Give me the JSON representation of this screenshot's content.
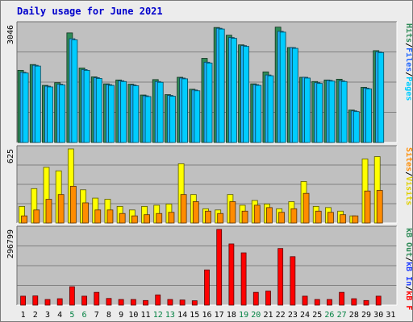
{
  "chart_data": {
    "type": "bar",
    "title": "Daily usage for June 2021",
    "categories": [
      "1",
      "2",
      "3",
      "4",
      "5",
      "6",
      "7",
      "8",
      "9",
      "10",
      "11",
      "12",
      "13",
      "14",
      "15",
      "16",
      "17",
      "18",
      "19",
      "20",
      "21",
      "22",
      "23",
      "24",
      "25",
      "26",
      "27",
      "28",
      "29",
      "30",
      "31"
    ],
    "weekend_days": [
      5,
      6,
      12,
      13,
      19,
      20,
      26,
      27
    ],
    "colors": {
      "hits": "#2e8b57",
      "files": "#00b0f0",
      "pages": "#00ccff",
      "visits": "#ffff00",
      "sites": "#ff8c00",
      "kb_out": "#ff8c00",
      "kb_in": "#1e3cff",
      "kb_f": "#ff0000",
      "weekday_label": "#000000",
      "weekend_label": "#008040"
    },
    "panels": [
      {
        "id": "hits-files-pages",
        "max_label": "3046",
        "ylim": [
          0,
          3046
        ],
        "right_labels": [
          {
            "text": "Pages",
            "color": "#00ccff"
          },
          {
            "text": "/",
            "color": "#000000"
          },
          {
            "text": "Files",
            "color": "#1e64ff"
          },
          {
            "text": "/",
            "color": "#000000"
          },
          {
            "text": "Hits",
            "color": "#2e8b57"
          }
        ],
        "series": [
          {
            "name": "Hits",
            "color": "#2e8b57",
            "values": [
              1870,
              2020,
              1480,
              1550,
              2840,
              1930,
              1700,
              1520,
              1620,
              1510,
              1230,
              1630,
              1240,
              1690,
              1380,
              2180,
              2980,
              2780,
              2530,
              1520,
              1830,
              2990,
              2460,
              1690,
              1580,
              1620,
              1640,
              840,
              1430,
              2380,
              0
            ]
          },
          {
            "name": "Files",
            "color": "#1eb4ff",
            "values": [
              1820,
              2000,
              1460,
              1510,
              2690,
              1890,
              1680,
              1500,
              1600,
              1490,
              1210,
              1580,
              1220,
              1670,
              1360,
              2080,
              2960,
              2720,
              2510,
              1500,
              1750,
              2880,
              2460,
              1690,
              1550,
              1610,
              1600,
              820,
              1410,
              2350,
              0
            ]
          },
          {
            "name": "Pages",
            "color": "#00ccff",
            "values": [
              1800,
              1980,
              1440,
              1490,
              2660,
              1870,
              1660,
              1480,
              1580,
              1470,
              1190,
              1560,
              1200,
              1650,
              1340,
              2060,
              2940,
              2700,
              2490,
              1480,
              1730,
              2860,
              2440,
              1670,
              1530,
              1590,
              1580,
              800,
              1390,
              2330,
              0
            ]
          }
        ]
      },
      {
        "id": "visits-sites",
        "max_label": "625",
        "ylim": [
          0,
          625
        ],
        "right_labels": [
          {
            "text": "Visits",
            "color": "#e0d000"
          },
          {
            "text": "/",
            "color": "#000000"
          },
          {
            "text": "Sites",
            "color": "#ff8c00"
          }
        ],
        "series": [
          {
            "name": "Visits",
            "color": "#ffff00",
            "values": [
              140,
              290,
              470,
              440,
              625,
              280,
              210,
              200,
              140,
              110,
              140,
              150,
              160,
              500,
              240,
              120,
              110,
              240,
              150,
              190,
              160,
              120,
              180,
              350,
              140,
              130,
              100,
              60,
              540,
              560,
              0
            ]
          },
          {
            "name": "Sites",
            "color": "#ff8c00",
            "values": [
              60,
              110,
              200,
              240,
              310,
              170,
              110,
              110,
              80,
              60,
              70,
              80,
              90,
              240,
              180,
              100,
              80,
              180,
              100,
              150,
              130,
              90,
              120,
              250,
              100,
              90,
              70,
              60,
              270,
              275,
              0
            ]
          }
        ]
      },
      {
        "id": "kbytes",
        "max_label": "296799",
        "ylim": [
          0,
          296799
        ],
        "right_labels": [
          {
            "text": "kB F",
            "color": "#ff0000"
          },
          {
            "text": "/",
            "color": "#000000"
          },
          {
            "text": "kB In",
            "color": "#1e3cff"
          },
          {
            "text": "/",
            "color": "#000000"
          },
          {
            "text": "kB Out",
            "color": "#2e8b57"
          }
        ],
        "series": [
          {
            "name": "kB F",
            "color": "#ff0000",
            "values": [
              35000,
              36000,
              22000,
              25000,
              72000,
              35000,
              50000,
              26000,
              22000,
              22000,
              18000,
              40000,
              22000,
              20000,
              17000,
              138000,
              296799,
              240000,
              205000,
              50000,
              55000,
              222000,
              190000,
              35000,
              22000,
              22000,
              50000,
              25000,
              18000,
              35000,
              0
            ]
          }
        ]
      }
    ]
  }
}
